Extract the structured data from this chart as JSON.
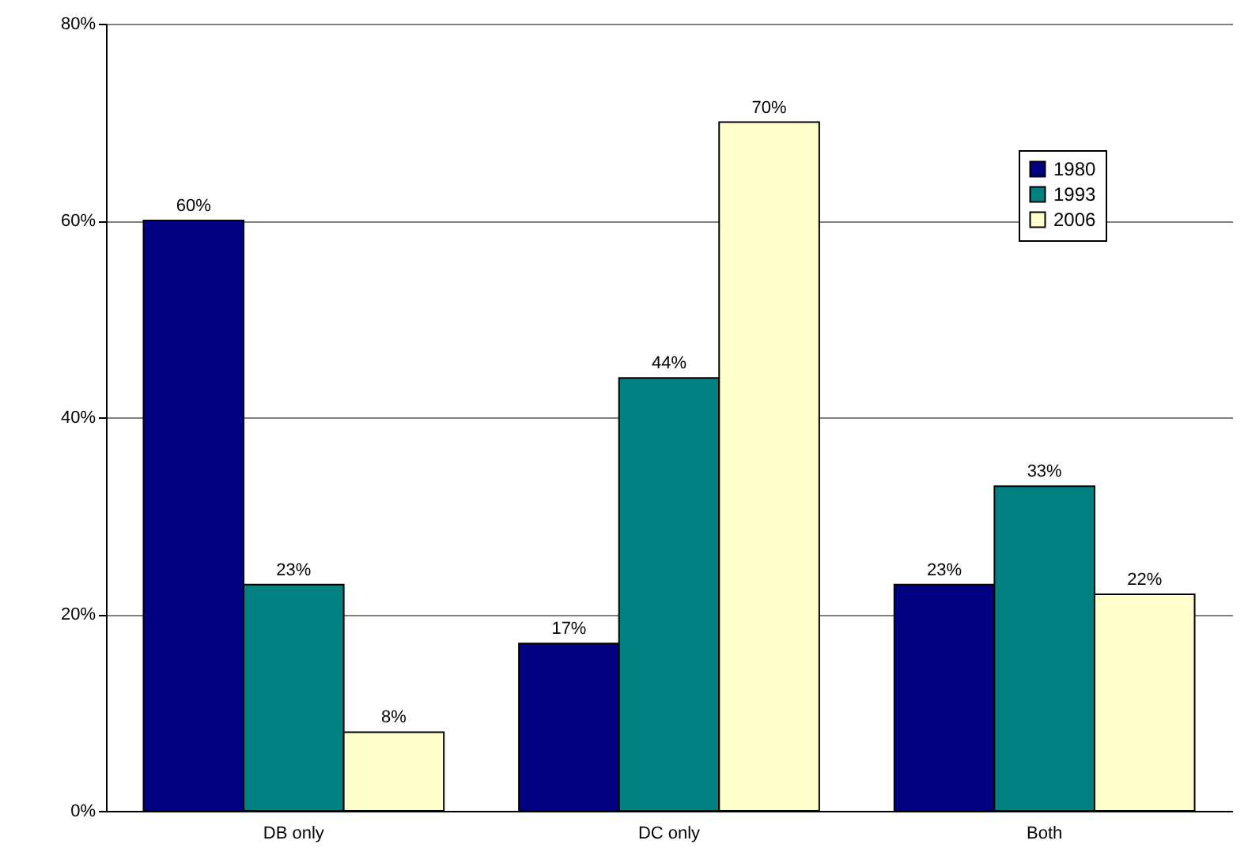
{
  "chart_data": {
    "type": "bar",
    "categories": [
      "DB only",
      "DC only",
      "Both"
    ],
    "series": [
      {
        "name": "1980",
        "color": "#000080",
        "values": [
          60,
          17,
          23
        ],
        "value_labels": [
          "60%",
          "17%",
          "23%"
        ]
      },
      {
        "name": "1993",
        "color": "#008080",
        "values": [
          23,
          44,
          33
        ],
        "value_labels": [
          "23%",
          "44%",
          "33%"
        ]
      },
      {
        "name": "2006",
        "color": "#ffffcc",
        "values": [
          8,
          70,
          22
        ],
        "value_labels": [
          "8%",
          "70%",
          "22%"
        ]
      }
    ],
    "ylim": [
      0,
      80
    ],
    "yticks": [
      {
        "value": 0,
        "label": "0%"
      },
      {
        "value": 20,
        "label": "20%"
      },
      {
        "value": 40,
        "label": "40%"
      },
      {
        "value": 60,
        "label": "60%"
      },
      {
        "value": 80,
        "label": "80%"
      }
    ],
    "grid": "y",
    "legend": "top right"
  }
}
